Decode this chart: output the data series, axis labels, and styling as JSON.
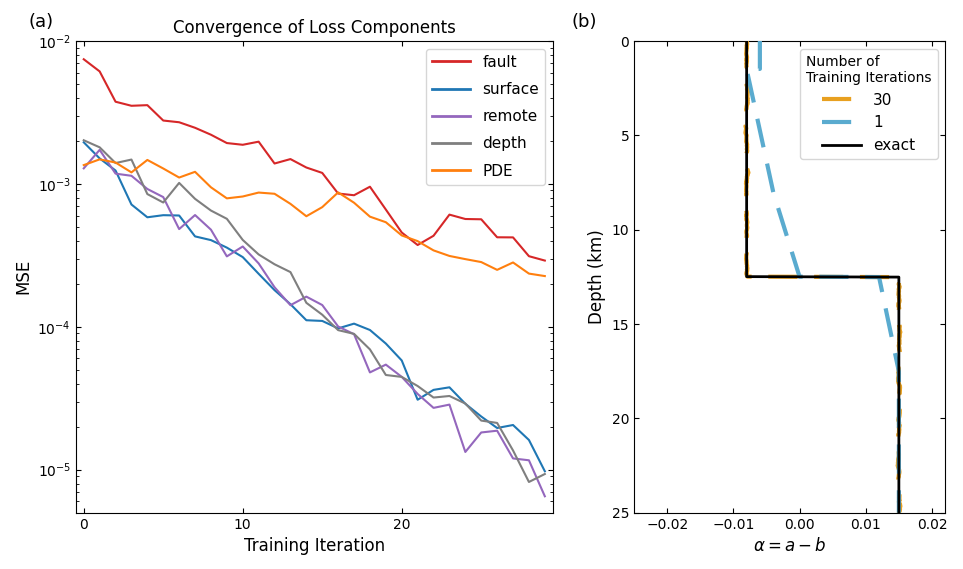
{
  "title_a": "Convergence of Loss Components",
  "xlabel_a": "Training Iteration",
  "ylabel_a": "MSE",
  "label_a": "(a)",
  "label_b": "(b)",
  "legend_a": [
    "fault",
    "surface",
    "remote",
    "depth",
    "PDE"
  ],
  "colors_a": [
    "#d62728",
    "#1f77b4",
    "#9467bd",
    "#7f7f7f",
    "#ff7f0e"
  ],
  "ylim_a": [
    5e-06,
    0.01
  ],
  "xlim_a": [
    -0.5,
    29.5
  ],
  "xlabel_b": "$\\alpha = a - b$",
  "ylabel_b": "Depth (km)",
  "ylim_b": [
    0,
    25
  ],
  "xlim_b": [
    -0.025,
    0.022
  ],
  "legend_b_title": "Number of\nTraining Iterations",
  "legend_b": [
    "exact",
    "1",
    "30"
  ],
  "colors_b": [
    "#000000",
    "#5aabcf",
    "#e8a020"
  ],
  "background_color": "#ffffff"
}
